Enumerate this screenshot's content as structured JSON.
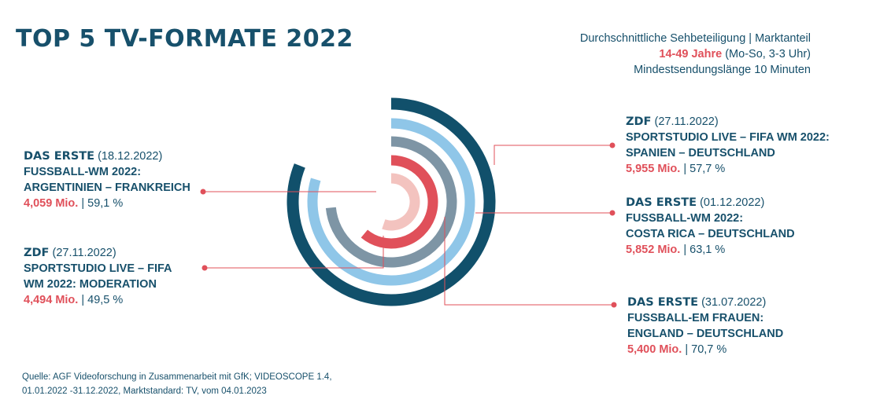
{
  "header": {
    "title": "TOP 5 TV-FORMATE 2022",
    "subtitle_line1": "Durchschnittliche Sehbeteiligung | Marktanteil",
    "subtitle_age": "14-49 Jahre",
    "subtitle_age_rest": "(Mo-So, 3-3 Uhr)",
    "subtitle_line3": "Mindestsendungslänge 10 Minuten"
  },
  "colors": {
    "ring1": "#11506b",
    "ring2": "#8fc6e8",
    "ring3": "#7e95a5",
    "ring4": "#e0505a",
    "ring5": "#f3c3bf",
    "text": "#17506b",
    "accent": "#e0505a"
  },
  "chart_data": {
    "type": "radial-bar",
    "unit": "Mio.",
    "entries": [
      {
        "sender": "ZDF",
        "date": "(27.11.2022)",
        "title1": "SPORTSTUDIO LIVE – FIFA WM 2022:",
        "title2": "SPANIEN – DEUTSCHLAND",
        "viewers": 5.955,
        "viewers_label": "5,955 Mio.",
        "share": "| 57,7 %"
      },
      {
        "sender": "DAS ERSTE",
        "date": "(01.12.2022)",
        "title1": "FUSSBALL-WM 2022:",
        "title2": "COSTA RICA – DEUTSCHLAND",
        "viewers": 5.852,
        "viewers_label": "5,852 Mio.",
        "share": "| 63,1 %"
      },
      {
        "sender": "DAS ERSTE",
        "date": "(31.07.2022)",
        "title1": "FUSSBALL-EM FRAUEN:",
        "title2": "ENGLAND – DEUTSCHLAND",
        "viewers": 5.4,
        "viewers_label": "5,400 Mio.",
        "share": "| 70,7 %"
      },
      {
        "sender": "ZDF",
        "date": "(27.11.2022)",
        "title1": "SPORTSTUDIO LIVE – FIFA",
        "title2": "WM 2022: MODERATION",
        "viewers": 4.494,
        "viewers_label": "4,494 Mio.",
        "share": "| 49,5 %"
      },
      {
        "sender": "DAS ERSTE",
        "date": "(18.12.2022)",
        "title1": "FUSSBALL-WM 2022:",
        "title2": "ARGENTINIEN – FRANKREICH",
        "viewers": 4.059,
        "viewers_label": "4,059 Mio.",
        "share": "| 59,1 %"
      }
    ]
  },
  "source": {
    "line1": "Quelle: AGF Videoforschung in Zusammenarbeit mit GfK; VIDEOSCOPE 1.4,",
    "line2": "01.01.2022 -31.12.2022, Marktstandard: TV, vom 04.01.2023"
  }
}
